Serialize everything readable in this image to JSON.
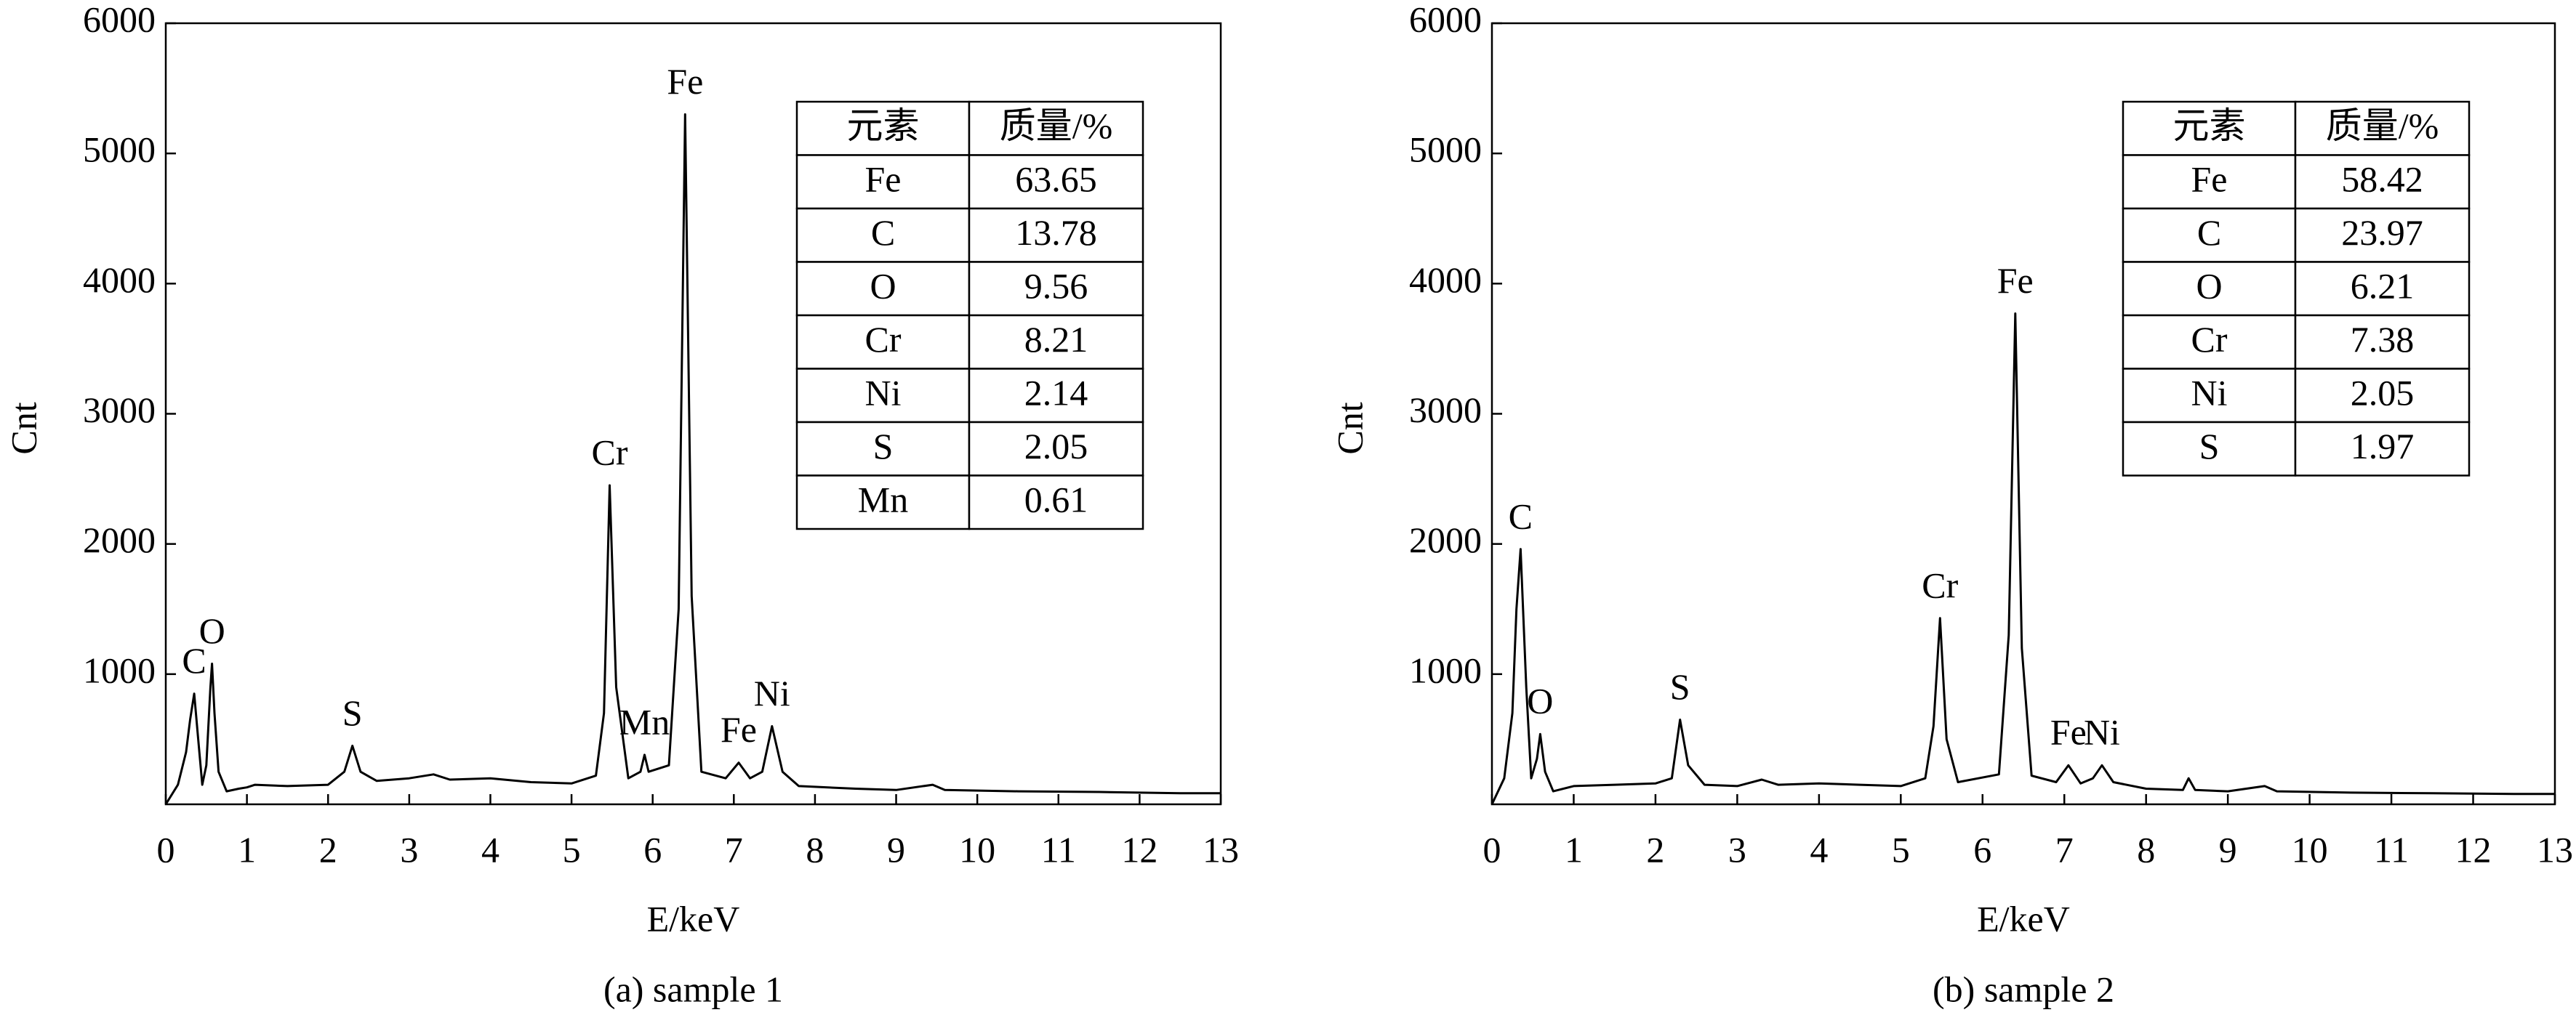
{
  "chart_data": [
    {
      "type": "line",
      "caption": "(a) sample 1",
      "xlabel": "E/keV",
      "ylabel": "Cnt",
      "xlim": [
        0,
        13
      ],
      "xticks": [
        0,
        1,
        2,
        3,
        4,
        5,
        6,
        7,
        8,
        9,
        10,
        11,
        12,
        13
      ],
      "ylim": [
        0,
        6000
      ],
      "yticks": [
        1000,
        2000,
        3000,
        4000,
        5000,
        6000
      ],
      "color": "#000000",
      "x": [
        0,
        0.15,
        0.25,
        0.3,
        0.35,
        0.4,
        0.45,
        0.5,
        0.55,
        0.57,
        0.6,
        0.65,
        0.75,
        0.9,
        1.0,
        1.1,
        1.5,
        2.0,
        2.2,
        2.3,
        2.4,
        2.6,
        3.0,
        3.3,
        3.5,
        4.0,
        4.5,
        5.0,
        5.3,
        5.4,
        5.47,
        5.55,
        5.7,
        5.85,
        5.9,
        5.95,
        6.2,
        6.32,
        6.4,
        6.48,
        6.6,
        6.9,
        7.06,
        7.2,
        7.35,
        7.47,
        7.6,
        7.8,
        8.5,
        9.0,
        9.45,
        9.6,
        10.5,
        11.5,
        12.5,
        13
      ],
      "values": [
        0,
        150,
        400,
        650,
        850,
        500,
        150,
        300,
        900,
        1080,
        700,
        250,
        100,
        120,
        130,
        150,
        140,
        150,
        250,
        450,
        250,
        180,
        200,
        230,
        190,
        200,
        170,
        160,
        220,
        700,
        2450,
        900,
        200,
        250,
        380,
        250,
        300,
        1500,
        5300,
        1600,
        250,
        200,
        320,
        200,
        250,
        600,
        250,
        140,
        120,
        110,
        150,
        110,
        100,
        95,
        85,
        85
      ],
      "annotations": [
        {
          "text": "C",
          "x": 0.35
        },
        {
          "text": "O",
          "x": 0.57
        },
        {
          "text": "S",
          "x": 2.3
        },
        {
          "text": "Cr",
          "x": 5.47
        },
        {
          "text": "Mn",
          "x": 5.9
        },
        {
          "text": "Fe",
          "x": 6.4
        },
        {
          "text": "Fe",
          "x": 7.06
        },
        {
          "text": "Ni",
          "x": 7.47
        }
      ],
      "table": {
        "header": [
          "元素",
          "质量/%"
        ],
        "rows": [
          [
            "Fe",
            63.65
          ],
          [
            "C",
            13.78
          ],
          [
            "O",
            9.56
          ],
          [
            "Cr",
            8.21
          ],
          [
            "Ni",
            2.14
          ],
          [
            "S",
            2.05
          ],
          [
            "Mn",
            0.61
          ]
        ]
      }
    },
    {
      "type": "line",
      "caption": "(b) sample 2",
      "xlabel": "E/keV",
      "ylabel": "Cnt",
      "xlim": [
        0,
        13
      ],
      "xticks": [
        0,
        1,
        2,
        3,
        4,
        5,
        6,
        7,
        8,
        9,
        10,
        11,
        12,
        13
      ],
      "ylim": [
        0,
        6000
      ],
      "yticks": [
        1000,
        2000,
        3000,
        4000,
        5000,
        6000
      ],
      "color": "#000000",
      "x": [
        0,
        0.15,
        0.25,
        0.3,
        0.35,
        0.42,
        0.48,
        0.55,
        0.59,
        0.65,
        0.75,
        1.0,
        1.5,
        2.0,
        2.2,
        2.3,
        2.4,
        2.6,
        3.0,
        3.3,
        3.5,
        4.0,
        4.5,
        5.0,
        5.3,
        5.4,
        5.48,
        5.56,
        5.7,
        6.2,
        6.32,
        6.4,
        6.48,
        6.6,
        6.9,
        7.05,
        7.2,
        7.35,
        7.46,
        7.6,
        8.0,
        8.45,
        8.52,
        8.6,
        9.0,
        9.45,
        9.6,
        10.5,
        11.5,
        12.5,
        13
      ],
      "values": [
        0,
        200,
        700,
        1500,
        1960,
        900,
        200,
        350,
        540,
        250,
        100,
        140,
        150,
        160,
        200,
        650,
        300,
        150,
        140,
        190,
        150,
        160,
        150,
        140,
        200,
        600,
        1430,
        500,
        170,
        230,
        1300,
        3770,
        1200,
        220,
        170,
        300,
        160,
        200,
        300,
        170,
        120,
        110,
        200,
        110,
        100,
        140,
        100,
        90,
        85,
        80,
        80
      ],
      "annotations": [
        {
          "text": "C",
          "x": 0.35
        },
        {
          "text": "O",
          "x": 0.59
        },
        {
          "text": "S",
          "x": 2.3
        },
        {
          "text": "Cr",
          "x": 5.48
        },
        {
          "text": "Fe",
          "x": 6.4
        },
        {
          "text": "Fe",
          "x": 7.05
        },
        {
          "text": "Ni",
          "x": 7.46
        }
      ],
      "table": {
        "header": [
          "元素",
          "质量/%"
        ],
        "rows": [
          [
            "Fe",
            58.42
          ],
          [
            "C",
            23.97
          ],
          [
            "O",
            6.21
          ],
          [
            "Cr",
            7.38
          ],
          [
            "Ni",
            2.05
          ],
          [
            "S",
            1.97
          ]
        ]
      }
    }
  ]
}
